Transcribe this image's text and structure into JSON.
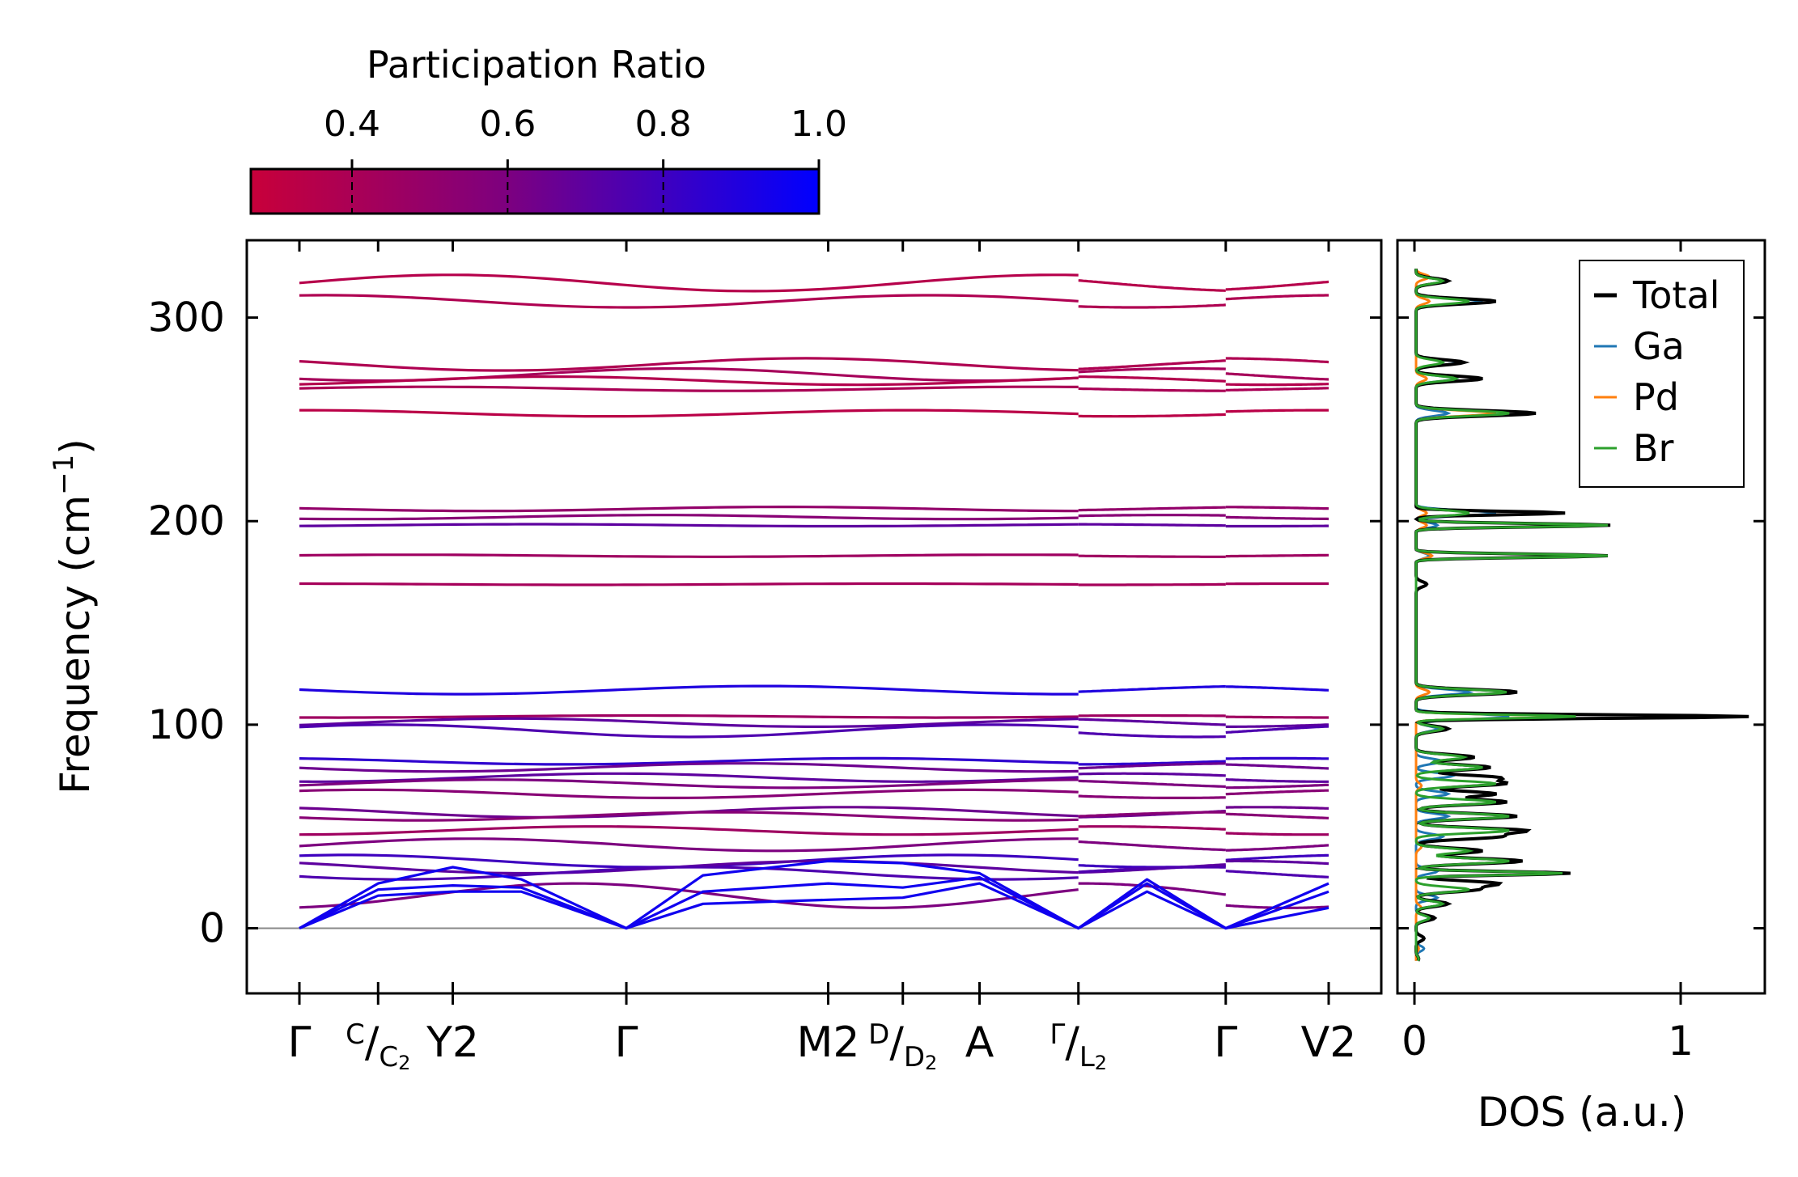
{
  "chart_data": [
    {
      "type": "line",
      "subtype": "phonon-band-structure",
      "ylabel": "Frequency (cm",
      "ylabel_exp": "−1",
      "ylabel_close": ")",
      "ylim": [
        -32,
        338
      ],
      "yticks": [
        0,
        100,
        200,
        300
      ],
      "ytick_labels": [
        "0",
        "100",
        "200",
        "300"
      ],
      "kpath_x_range": [
        0,
        5.1
      ],
      "kpoints": [
        {
          "x": 0.0,
          "label": "Γ"
        },
        {
          "x": 0.39,
          "label": "C/C₂",
          "sup": "C",
          "sub": "C",
          "sub2": "2"
        },
        {
          "x": 0.76,
          "label": "Y₂",
          "main": "Y",
          "main_sub": "2"
        },
        {
          "x": 1.62,
          "label": "Γ"
        },
        {
          "x": 2.62,
          "label": "M₂",
          "main": "M",
          "main_sub": "2"
        },
        {
          "x": 2.99,
          "label": "D/D₂",
          "sup": "D",
          "sub": "D",
          "sub2": "2"
        },
        {
          "x": 3.37,
          "label": "A"
        },
        {
          "x": 3.86,
          "label": "Γ/L₂",
          "sup": "Γ",
          "sub": "L",
          "sub2": "2"
        },
        {
          "x": 4.59,
          "label": "Γ"
        },
        {
          "x": 5.1,
          "label": "V₂",
          "main": "V",
          "main_sub": "2"
        }
      ],
      "segment_breaks": [
        [
          0,
          3.86
        ],
        [
          3.86,
          4.59
        ],
        [
          4.59,
          5.1
        ]
      ],
      "zero_line": 0,
      "optical_bands_flat": [
        {
          "f": 317,
          "pr": 0.35,
          "wave": 4
        },
        {
          "f": 308,
          "pr": 0.38,
          "wave": 3
        },
        {
          "f": 277,
          "pr": 0.38,
          "wave": 3
        },
        {
          "f": 272,
          "pr": 0.42,
          "wave": 3
        },
        {
          "f": 269,
          "pr": 0.36,
          "wave": 2
        },
        {
          "f": 265,
          "pr": 0.4,
          "wave": 1
        },
        {
          "f": 253,
          "pr": 0.33,
          "wave": 1.5
        },
        {
          "f": 206,
          "pr": 0.5,
          "wave": 1
        },
        {
          "f": 202,
          "pr": 0.55,
          "wave": 1
        },
        {
          "f": 198,
          "pr": 0.7,
          "wave": 0.5
        },
        {
          "f": 183,
          "pr": 0.45,
          "wave": 0.5
        },
        {
          "f": 169,
          "pr": 0.42,
          "wave": 0.3
        },
        {
          "f": 117,
          "pr": 0.9,
          "wave": 2
        },
        {
          "f": 104,
          "pr": 0.45,
          "wave": 0.5
        },
        {
          "f": 101,
          "pr": 0.7,
          "wave": 2
        },
        {
          "f": 97,
          "pr": 0.75,
          "wave": 3
        },
        {
          "f": 82,
          "pr": 0.85,
          "wave": 1.5
        },
        {
          "f": 79,
          "pr": 0.65,
          "wave": 2
        },
        {
          "f": 74,
          "pr": 0.7,
          "wave": 2
        },
        {
          "f": 71,
          "pr": 0.6,
          "wave": 2
        },
        {
          "f": 66,
          "pr": 0.55,
          "wave": 2
        },
        {
          "f": 57,
          "pr": 0.65,
          "wave": 2.5
        },
        {
          "f": 55,
          "pr": 0.55,
          "wave": 2
        },
        {
          "f": 48,
          "pr": 0.45,
          "wave": 2
        },
        {
          "f": 41,
          "pr": 0.6,
          "wave": 3
        },
        {
          "f": 33,
          "pr": 0.8,
          "wave": 3
        },
        {
          "f": 30,
          "pr": 0.7,
          "wave": 3
        },
        {
          "f": 27,
          "pr": 0.75,
          "wave": 3
        },
        {
          "f": 16,
          "pr": 0.6,
          "wave": 6
        }
      ],
      "acoustic_bands": [
        {
          "pr": 0.95,
          "points": [
            [
              0,
              0
            ],
            [
              0.39,
              16
            ],
            [
              0.76,
              18
            ],
            [
              1.1,
              18
            ],
            [
              1.62,
              0
            ],
            [
              2.0,
              12
            ],
            [
              2.62,
              14
            ],
            [
              2.99,
              15
            ],
            [
              3.37,
              22
            ],
            [
              3.86,
              0
            ],
            [
              4.2,
              18
            ],
            [
              4.59,
              0
            ],
            [
              5.1,
              10
            ]
          ]
        },
        {
          "pr": 0.95,
          "points": [
            [
              0,
              0
            ],
            [
              0.39,
              19
            ],
            [
              0.76,
              21
            ],
            [
              1.1,
              20
            ],
            [
              1.62,
              0
            ],
            [
              2.0,
              18
            ],
            [
              2.62,
              22
            ],
            [
              2.99,
              20
            ],
            [
              3.37,
              25
            ],
            [
              3.86,
              0
            ],
            [
              4.2,
              22
            ],
            [
              4.59,
              0
            ],
            [
              5.1,
              18
            ]
          ]
        },
        {
          "pr": 0.95,
          "points": [
            [
              0,
              0
            ],
            [
              0.39,
              22
            ],
            [
              0.76,
              30
            ],
            [
              1.1,
              24
            ],
            [
              1.62,
              0
            ],
            [
              2.0,
              26
            ],
            [
              2.62,
              33
            ],
            [
              2.99,
              32
            ],
            [
              3.37,
              27
            ],
            [
              3.86,
              0
            ],
            [
              4.2,
              24
            ],
            [
              4.59,
              0
            ],
            [
              5.1,
              22
            ]
          ]
        }
      ]
    },
    {
      "type": "line",
      "subtype": "density-of-states",
      "xlabel": "DOS (a.u.)",
      "xlim": [
        -0.03,
        1.3
      ],
      "xticks": [
        0,
        1
      ],
      "xtick_labels": [
        "0",
        "1"
      ],
      "ylim": [
        -32,
        338
      ],
      "series": [
        {
          "name": "Total",
          "color": "#000000"
        },
        {
          "name": "Ga",
          "color": "#1f77b4"
        },
        {
          "name": "Pd",
          "color": "#ff7f0e"
        },
        {
          "name": "Br",
          "color": "#2ca02c"
        }
      ],
      "peaks": {
        "Total": [
          [
            -15,
            0.01
          ],
          [
            -5,
            0.03
          ],
          [
            5,
            0.07
          ],
          [
            12,
            0.12
          ],
          [
            19,
            0.22
          ],
          [
            22,
            0.3
          ],
          [
            27,
            0.58
          ],
          [
            33,
            0.4
          ],
          [
            38,
            0.25
          ],
          [
            45,
            0.3
          ],
          [
            48,
            0.4
          ],
          [
            55,
            0.38
          ],
          [
            62,
            0.34
          ],
          [
            66,
            0.3
          ],
          [
            71,
            0.32
          ],
          [
            74,
            0.3
          ],
          [
            79,
            0.28
          ],
          [
            84,
            0.22
          ],
          [
            98,
            0.12
          ],
          [
            104,
            1.25
          ],
          [
            116,
            0.38
          ],
          [
            169,
            0.04
          ],
          [
            183,
            0.72
          ],
          [
            198,
            0.73
          ],
          [
            204,
            0.56
          ],
          [
            253,
            0.45
          ],
          [
            270,
            0.25
          ],
          [
            278,
            0.18
          ],
          [
            308,
            0.3
          ],
          [
            318,
            0.12
          ]
        ],
        "Ga": [
          [
            -10,
            0.03
          ],
          [
            5,
            0.05
          ],
          [
            15,
            0.08
          ],
          [
            28,
            0.08
          ],
          [
            45,
            0.1
          ],
          [
            55,
            0.12
          ],
          [
            66,
            0.12
          ],
          [
            75,
            0.14
          ],
          [
            82,
            0.1
          ],
          [
            98,
            0.08
          ],
          [
            104,
            0.35
          ],
          [
            116,
            0.2
          ],
          [
            183,
            0.05
          ],
          [
            198,
            0.08
          ],
          [
            204,
            0.3
          ],
          [
            253,
            0.12
          ],
          [
            270,
            0.15
          ],
          [
            278,
            0.16
          ],
          [
            308,
            0.25
          ],
          [
            318,
            0.12
          ]
        ],
        "Pd": [
          [
            -10,
            0.01
          ],
          [
            10,
            0.02
          ],
          [
            40,
            0.02
          ],
          [
            70,
            0.02
          ],
          [
            104,
            0.6
          ],
          [
            116,
            0.05
          ],
          [
            183,
            0.06
          ],
          [
            198,
            0.04
          ],
          [
            204,
            0.04
          ],
          [
            253,
            0.3
          ],
          [
            270,
            0.04
          ],
          [
            308,
            0.05
          ],
          [
            320,
            0.05
          ]
        ],
        "Br": [
          [
            -15,
            0.01
          ],
          [
            5,
            0.05
          ],
          [
            12,
            0.1
          ],
          [
            19,
            0.2
          ],
          [
            27,
            0.55
          ],
          [
            33,
            0.35
          ],
          [
            38,
            0.2
          ],
          [
            48,
            0.35
          ],
          [
            55,
            0.35
          ],
          [
            62,
            0.3
          ],
          [
            71,
            0.3
          ],
          [
            79,
            0.25
          ],
          [
            84,
            0.18
          ],
          [
            98,
            0.1
          ],
          [
            104,
            0.6
          ],
          [
            116,
            0.34
          ],
          [
            183,
            0.72
          ],
          [
            198,
            0.72
          ],
          [
            204,
            0.2
          ],
          [
            253,
            0.35
          ],
          [
            270,
            0.15
          ],
          [
            278,
            0.1
          ],
          [
            308,
            0.2
          ],
          [
            318,
            0.1
          ]
        ]
      },
      "legend_position": "top-right"
    },
    {
      "type": "heatmap",
      "subtype": "colorbar",
      "title": "Participation Ratio",
      "range": [
        0.27,
        1.0
      ],
      "ticks": [
        0.4,
        0.6,
        0.8,
        1.0
      ],
      "tick_labels": [
        "0.4",
        "0.6",
        "0.8",
        "1.0"
      ],
      "color_low": "#c8003a",
      "color_mid": "#7d007f",
      "color_high": "#0000ff"
    }
  ]
}
